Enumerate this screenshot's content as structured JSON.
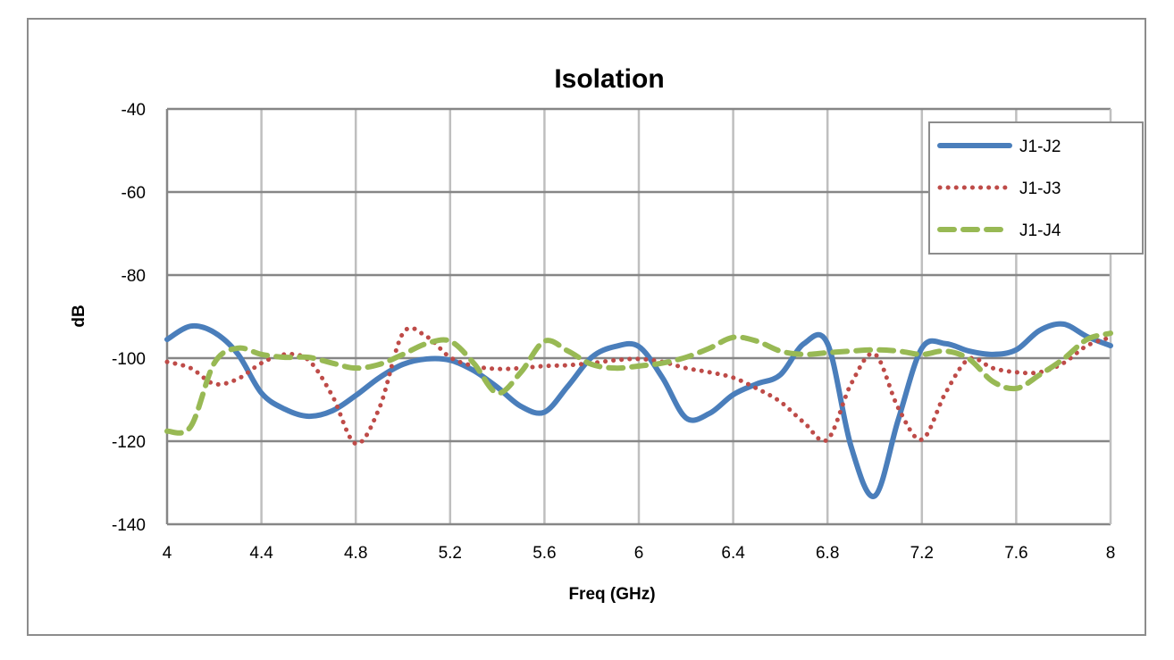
{
  "chart_data": {
    "type": "line",
    "title": "Isolation",
    "xlabel": "Freq (GHz)",
    "ylabel": "dB",
    "xlim": [
      4,
      8
    ],
    "ylim": [
      -140,
      -40
    ],
    "xticks": [
      "4",
      "4.4",
      "4.8",
      "5.2",
      "5.6",
      "6",
      "6.4",
      "6.8",
      "7.2",
      "7.6",
      "8"
    ],
    "yticks": [
      "-40",
      "-60",
      "-80",
      "-100",
      "-120",
      "-140"
    ],
    "grid": true,
    "legend_position": "top-right",
    "x": [
      4.0,
      4.1,
      4.2,
      4.3,
      4.4,
      4.5,
      4.6,
      4.7,
      4.8,
      4.9,
      5.0,
      5.1,
      5.2,
      5.3,
      5.4,
      5.5,
      5.6,
      5.7,
      5.8,
      5.9,
      6.0,
      6.1,
      6.2,
      6.3,
      6.4,
      6.5,
      6.6,
      6.7,
      6.8,
      6.9,
      7.0,
      7.1,
      7.2,
      7.3,
      7.4,
      7.5,
      7.6,
      7.7,
      7.8,
      7.9,
      8.0
    ],
    "series": [
      {
        "name": "J1-J2",
        "color": "#4a7ebb",
        "style": "solid",
        "values": [
          -95.5,
          -92.3,
          -93.8,
          -99,
          -108.4,
          -112.3,
          -114,
          -112.7,
          -109,
          -104.7,
          -101.5,
          -100.2,
          -100.5,
          -103,
          -107,
          -111.6,
          -113,
          -106.7,
          -99.8,
          -97.2,
          -97.2,
          -104.7,
          -114.4,
          -113.3,
          -108.8,
          -106.2,
          -104,
          -96.5,
          -96.5,
          -121.3,
          -133.2,
          -114.8,
          -97.6,
          -96.5,
          -98.3,
          -99.1,
          -98,
          -93.3,
          -91.8,
          -94.8,
          -97
        ]
      },
      {
        "name": "J1-J3",
        "color": "#be4b48",
        "style": "dotted",
        "values": [
          -100.9,
          -102.4,
          -106.2,
          -105,
          -101.2,
          -99.1,
          -100.5,
          -109,
          -120.6,
          -112,
          -94,
          -94.8,
          -99.8,
          -101.9,
          -102.6,
          -102.4,
          -101.9,
          -101.7,
          -101.2,
          -100.5,
          -100.2,
          -100.9,
          -102.4,
          -103.4,
          -104.7,
          -107.3,
          -110.5,
          -115.5,
          -119.6,
          -106.2,
          -99,
          -112,
          -119.6,
          -108.4,
          -100.2,
          -102.4,
          -103.4,
          -103.4,
          -101.2,
          -97,
          -95
        ]
      },
      {
        "name": "J1-J4",
        "color": "#98b954",
        "style": "dashed",
        "values": [
          -117.6,
          -116.5,
          -101.2,
          -97.6,
          -99.1,
          -99.8,
          -99.8,
          -101.2,
          -102.4,
          -101.5,
          -99.1,
          -96.5,
          -95.9,
          -101.2,
          -108.4,
          -103.4,
          -95.9,
          -98.3,
          -101.5,
          -102.4,
          -101.9,
          -101.2,
          -99.8,
          -97.6,
          -95,
          -95.9,
          -98.3,
          -99.1,
          -98.7,
          -98.3,
          -98,
          -98.3,
          -99.1,
          -98.3,
          -100.2,
          -105.6,
          -107.3,
          -104,
          -100.2,
          -95.5,
          -94
        ]
      }
    ]
  }
}
